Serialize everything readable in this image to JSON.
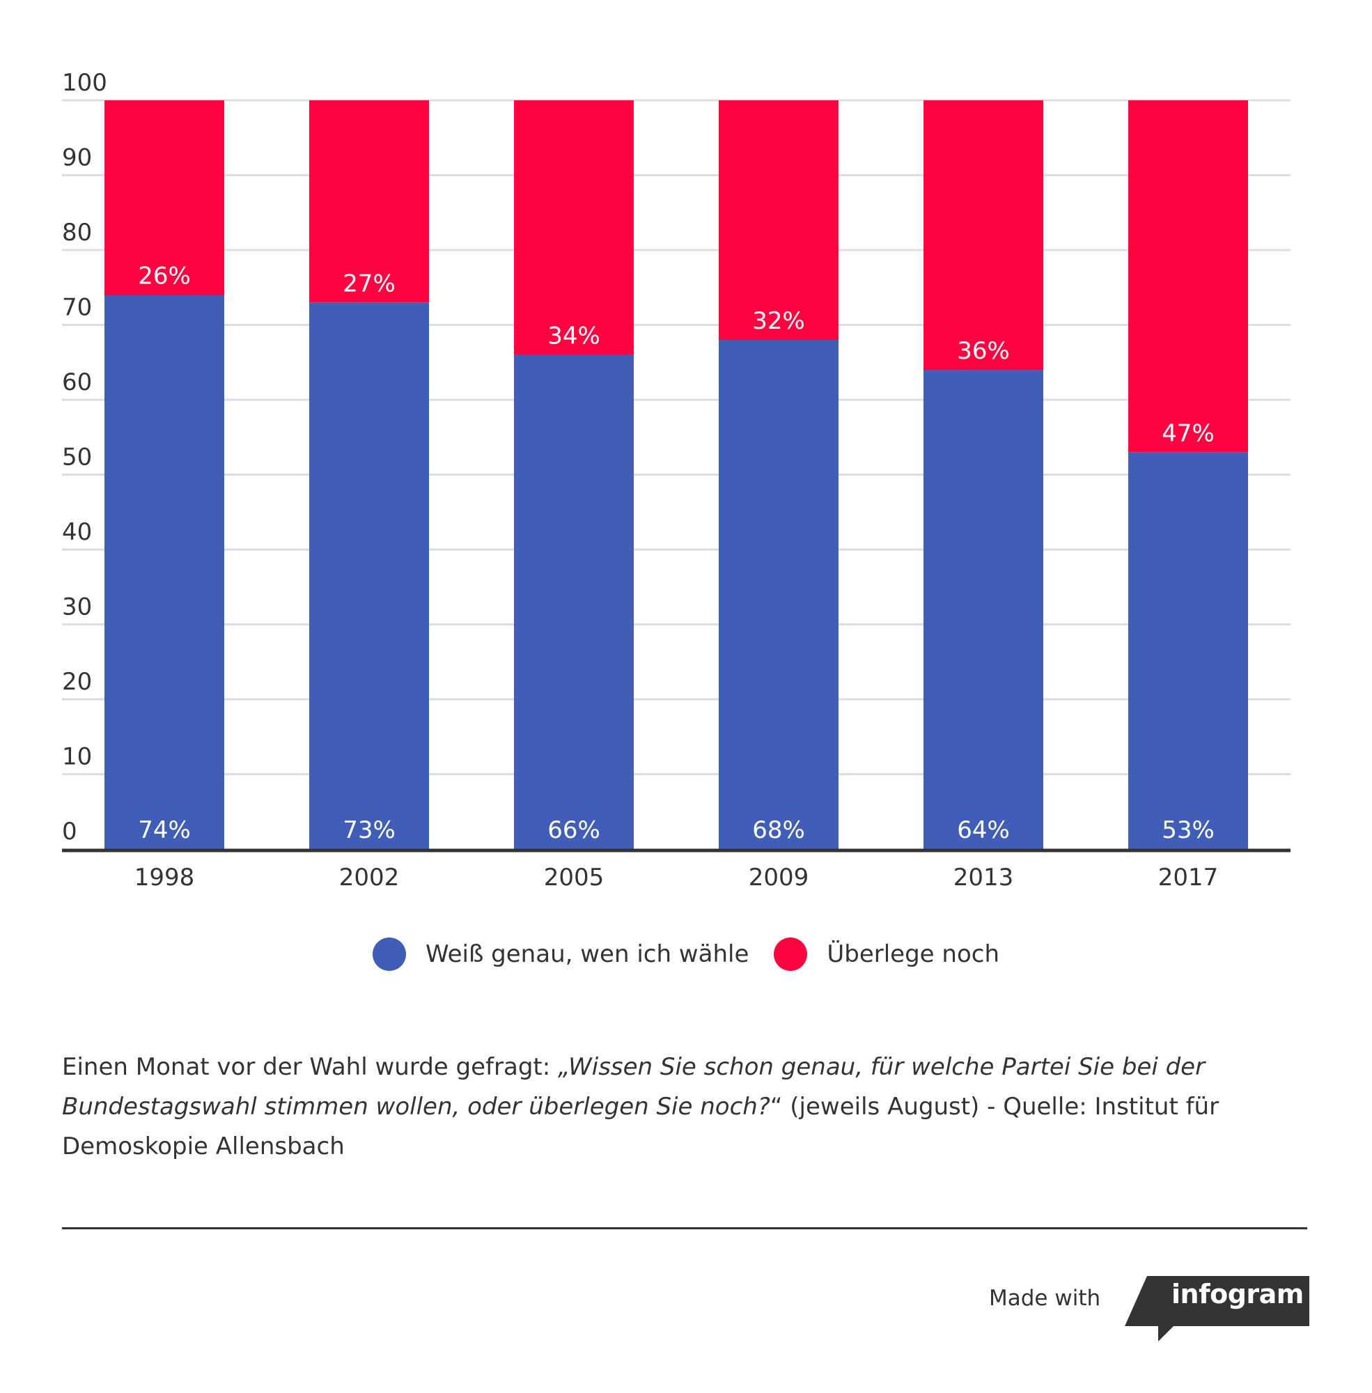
{
  "chart_data": {
    "type": "bar",
    "stacked": true,
    "categories": [
      "1998",
      "2002",
      "2005",
      "2009",
      "2013",
      "2017"
    ],
    "series": [
      {
        "name": "Weiß genau, wen ich wähle",
        "color": "#405EB7",
        "values": [
          74,
          73,
          66,
          68,
          64,
          53
        ],
        "labels": [
          "74%",
          "73%",
          "66%",
          "68%",
          "64%",
          "53%"
        ]
      },
      {
        "name": "Überlege noch",
        "color": "#FF0340",
        "values": [
          26,
          27,
          34,
          32,
          36,
          47
        ],
        "labels": [
          "26%",
          "27%",
          "34%",
          "32%",
          "36%",
          "47%"
        ]
      }
    ],
    "ylim": [
      0,
      100
    ],
    "yticks": [
      "0",
      "10",
      "20",
      "30",
      "40",
      "50",
      "60",
      "70",
      "80",
      "90",
      "100"
    ],
    "grid": true,
    "legend_position": "bottom-center"
  },
  "footnote": {
    "prefix": "Einen Monat vor der Wahl wurde gefragt: ",
    "quote": "„Wissen Sie schon genau, für welche Partei Sie bei der Bundestagswahl stimmen wollen, oder überlegen Sie noch?",
    "suffix": "“ (jeweils August) - Quelle: Institut für Demoskopie Allensbach"
  },
  "branding": {
    "made_with": "Made with",
    "brand": "infogram"
  },
  "colors": {
    "grid": "#DDDDDD",
    "axis": "#333333",
    "badge": "#333333"
  }
}
